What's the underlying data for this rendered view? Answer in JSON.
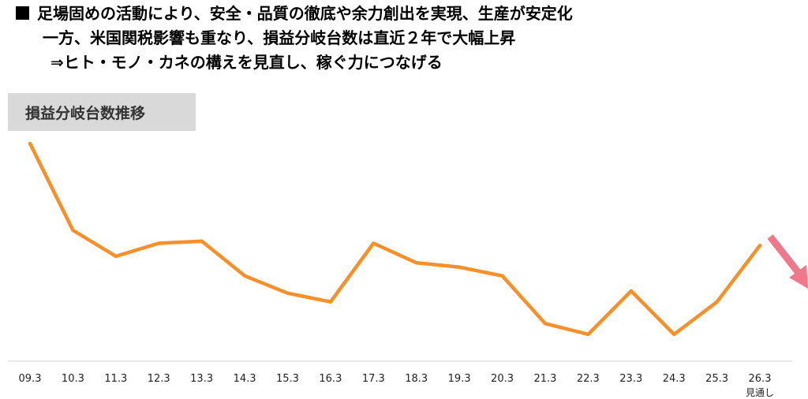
{
  "header": {
    "line1": "足場固めの活動により、安全・品質の徹底や余力創出を実現、生産が安定化",
    "line2": "一方、米国関税影響も重なり、損益分岐台数は直近２年で大幅上昇",
    "line3": "⇒ヒト・モノ・カネの構えを見直し、稼ぐ力につなげる"
  },
  "section_label": "損益分岐台数推移",
  "forecast_note": "見通し",
  "colors": {
    "line": "#f7902a",
    "arrow": "#f0788c",
    "label_bg": "#d9d9d9"
  },
  "chart_data": {
    "type": "line",
    "title": "損益分岐台数推移",
    "categories": [
      "09.3",
      "10.3",
      "11.3",
      "12.3",
      "13.3",
      "14.3",
      "15.3",
      "16.3",
      "17.3",
      "18.3",
      "19.3",
      "20.3",
      "21.3",
      "22.3",
      "23.3",
      "24.3",
      "25.3",
      "26.3"
    ],
    "series": [
      {
        "values": [
          100,
          60,
          48,
          54,
          55,
          39,
          31,
          27,
          54,
          45,
          43,
          39,
          17,
          12,
          32,
          12,
          27,
          53
        ]
      }
    ],
    "ylim": [
      0,
      105
    ],
    "grid": false,
    "forecast_category": "26.3",
    "trend_arrow": "down",
    "xlabel": "",
    "ylabel": ""
  }
}
